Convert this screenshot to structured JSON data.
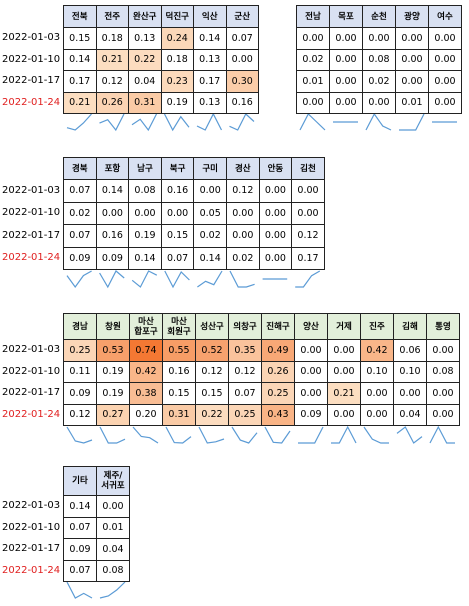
{
  "tables": [
    {
      "dates": [
        "2022-01-03",
        "2022-01-10",
        "2022-01-17",
        "2022-01-24"
      ],
      "columns": [
        "전북",
        "전주",
        "완산구",
        "덕진구",
        "익산",
        "군산"
      ],
      "header_color": "#d9e1f2",
      "rows": [
        [
          "0.15",
          "0.18",
          "0.13",
          "0.24",
          "0.14",
          "0.07"
        ],
        [
          "0.14",
          "0.21",
          "0.22",
          "0.18",
          "0.13",
          "0.00"
        ],
        [
          "0.17",
          "0.12",
          "0.04",
          "0.23",
          "0.17",
          "0.30"
        ],
        [
          "0.21",
          "0.26",
          "0.31",
          "0.19",
          "0.13",
          "0.16"
        ]
      ]
    },
    {
      "columns": [
        "전남",
        "목포",
        "순천",
        "광양",
        "여수"
      ],
      "header_color": "#d9e1f2",
      "rows": [
        [
          "0.00",
          "0.00",
          "0.00",
          "0.00",
          "0.00"
        ],
        [
          "0.02",
          "0.00",
          "0.08",
          "0.00",
          "0.00"
        ],
        [
          "0.01",
          "0.00",
          "0.02",
          "0.00",
          "0.00"
        ],
        [
          "0.00",
          "0.00",
          "0.00",
          "0.01",
          "0.00"
        ]
      ]
    },
    {
      "dates": [
        "2022-01-03",
        "2022-01-10",
        "2022-01-17",
        "2022-01-24"
      ],
      "columns": [
        "경북",
        "포항",
        "남구",
        "북구",
        "구미",
        "경산",
        "안동",
        "김천"
      ],
      "header_color": "#d9e1f2",
      "rows": [
        [
          "0.07",
          "0.14",
          "0.08",
          "0.16",
          "0.00",
          "0.12",
          "0.00",
          "0.00"
        ],
        [
          "0.02",
          "0.00",
          "0.00",
          "0.00",
          "0.05",
          "0.00",
          "0.00",
          "0.00"
        ],
        [
          "0.07",
          "0.16",
          "0.19",
          "0.15",
          "0.02",
          "0.00",
          "0.00",
          "0.12"
        ],
        [
          "0.09",
          "0.09",
          "0.14",
          "0.07",
          "0.14",
          "0.02",
          "0.00",
          "0.17"
        ]
      ]
    },
    {
      "dates": [
        "2022-01-03",
        "2022-01-10",
        "2022-01-17",
        "2022-01-24"
      ],
      "columns": [
        "경남",
        "창원",
        "마산\n합포구",
        "마산\n회원구",
        "성산구",
        "의창구",
        "진해구",
        "양산",
        "거제",
        "진주",
        "김해",
        "통영"
      ],
      "header_color": "#e2efda",
      "rows": [
        [
          "0.25",
          "0.53",
          "0.74",
          "0.55",
          "0.52",
          "0.35",
          "0.49",
          "0.00",
          "0.00",
          "0.42",
          "0.06",
          "0.00"
        ],
        [
          "0.11",
          "0.19",
          "0.42",
          "0.16",
          "0.12",
          "0.12",
          "0.26",
          "0.00",
          "0.00",
          "0.10",
          "0.10",
          "0.08"
        ],
        [
          "0.09",
          "0.19",
          "0.38",
          "0.15",
          "0.15",
          "0.07",
          "0.25",
          "0.00",
          "0.21",
          "0.00",
          "0.00",
          "0.00"
        ],
        [
          "0.12",
          "0.27",
          "0.20",
          "0.31",
          "0.22",
          "0.25",
          "0.43",
          "0.09",
          "0.00",
          "0.00",
          "0.04",
          "0.00"
        ]
      ]
    },
    {
      "dates": [
        "2022-01-03",
        "2022-01-10",
        "2022-01-17",
        "2022-01-24"
      ],
      "columns": [
        "기타",
        "제주/\n서귀포"
      ],
      "header_color": "#d9e1f2",
      "rows": [
        [
          "0.14",
          "0.00"
        ],
        [
          "0.07",
          "0.01"
        ],
        [
          "0.09",
          "0.04"
        ],
        [
          "0.07",
          "0.08"
        ]
      ]
    }
  ]
}
